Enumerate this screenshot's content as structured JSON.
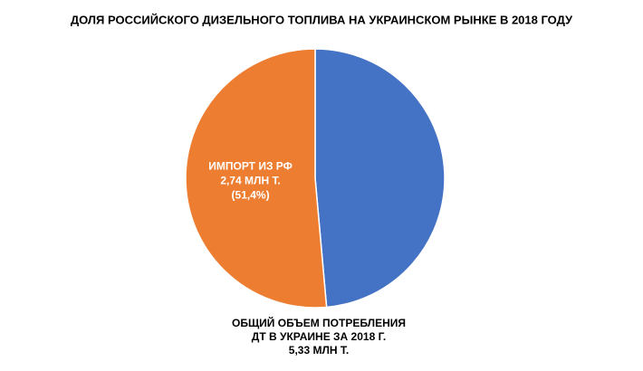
{
  "chart_data": {
    "type": "pie",
    "title": "ДОЛЯ РОССИЙСКОГО ДИЗЕЛЬНОГО ТОПЛИВА НА УКРАИНСКОМ РЫНКЕ В 2018 ГОДУ",
    "categories": [
      null,
      "ИМПОРТ ИЗ РФ"
    ],
    "values": [
      2.59,
      2.74
    ],
    "value_labels": [
      null,
      "2,74 МЛН Т."
    ],
    "percent_labels": [
      null,
      "(51,4%)"
    ],
    "colors": [
      "#4472c4",
      "#ed7d31"
    ],
    "annotation": [
      "ОБЩИЙ ОБЪЕМ ПОТРЕБЛЕНИЯ",
      "ДТ В УКРАИНЕ ЗА 2018 Г.",
      "5,33 МЛН Т."
    ]
  }
}
